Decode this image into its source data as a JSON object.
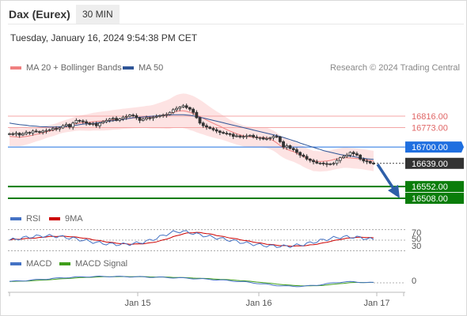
{
  "header": {
    "instrument": "Dax (Eurex)",
    "timeframe": "30 MIN",
    "datetime": "Tuesday, January 16, 2024 9:54:38 PM CET",
    "credit": "Research © 2024 Trading Central"
  },
  "legends": {
    "price": [
      {
        "label": "MA 20 + Bollinger Bands",
        "color": "#f08080"
      },
      {
        "label": "MA 50",
        "color": "#2f5597"
      }
    ],
    "rsi": [
      {
        "label": "RSI",
        "color": "#4472c4"
      },
      {
        "label": "9MA",
        "color": "#cc0000"
      }
    ],
    "macd": [
      {
        "label": "MACD",
        "color": "#4472c4"
      },
      {
        "label": "MACD Signal",
        "color": "#3f9e1a"
      }
    ]
  },
  "chart_data": {
    "type": "candlestick",
    "x_ticks": [
      "Jan 15",
      "Jan 16",
      "Jan 17"
    ],
    "ylim": [
      16480,
      16890
    ],
    "levels": [
      {
        "value": 16816.0,
        "label": "16816.00",
        "kind": "resistance",
        "color": "#e06666"
      },
      {
        "value": 16773.0,
        "label": "16773.00",
        "kind": "resistance",
        "color": "#e06666"
      },
      {
        "value": 16700.0,
        "label": "16700.00",
        "kind": "pivot",
        "color": "#1f6fe0"
      },
      {
        "value": 16639.0,
        "label": "16639.00",
        "kind": "last",
        "color": "#333333"
      },
      {
        "value": 16552.0,
        "label": "16552.00",
        "kind": "support",
        "color": "#0a7d0a"
      },
      {
        "value": 16508.0,
        "label": "16508.00",
        "kind": "support",
        "color": "#0a7d0a"
      }
    ],
    "close": [
      16750,
      16748,
      16752,
      16745,
      16750,
      16755,
      16753,
      16760,
      16758,
      16755,
      16760,
      16762,
      16765,
      16770,
      16768,
      16772,
      16780,
      16785,
      16775,
      16790,
      16800,
      16798,
      16795,
      16790,
      16785,
      16788,
      16780,
      16790,
      16795,
      16800,
      16805,
      16808,
      16800,
      16806,
      16812,
      16815,
      16820,
      16818,
      16810,
      16800,
      16805,
      16810,
      16808,
      16812,
      16815,
      16818,
      16820,
      16822,
      16830,
      16840,
      16845,
      16850,
      16855,
      16848,
      16842,
      16830,
      16810,
      16790,
      16780,
      16775,
      16770,
      16765,
      16760,
      16755,
      16752,
      16750,
      16748,
      16740,
      16742,
      16738,
      16740,
      16742,
      16744,
      16738,
      16735,
      16735,
      16730,
      16732,
      16735,
      16740,
      16738,
      16720,
      16700,
      16705,
      16695,
      16690,
      16680,
      16670,
      16665,
      16655,
      16650,
      16645,
      16640,
      16640,
      16638,
      16635,
      16637,
      16639,
      16650,
      16660,
      16665,
      16670,
      16680,
      16675,
      16670,
      16655,
      16648,
      16646,
      16640,
      16639
    ],
    "ma20": [
      16740,
      16739,
      16738,
      16737,
      16738,
      16740,
      16742,
      16745,
      16748,
      16750,
      16753,
      16757,
      16760,
      16763,
      16767,
      16772,
      16776,
      16779,
      16782,
      16785,
      16788,
      16790,
      16791,
      16792,
      16793,
      16795,
      16796,
      16797,
      16798,
      16799,
      16800,
      16802,
      16803,
      16804,
      16806,
      16807,
      16808,
      16809,
      16810,
      16811,
      16812,
      16813,
      16813,
      16814,
      16816,
      16818,
      16820,
      16822,
      16825,
      16830,
      16834,
      16836,
      16836,
      16834,
      16830,
      16826,
      16820,
      16814,
      16808,
      16801,
      16795,
      16789,
      16783,
      16778,
      16772,
      16766,
      16760,
      16755,
      16750,
      16746,
      16742,
      16740,
      16738,
      16737,
      16737,
      16737,
      16736,
      16734,
      16730,
      16724,
      16716,
      16706,
      16698,
      16692,
      16687,
      16683,
      16677,
      16671,
      16664,
      16658,
      16653,
      16648,
      16647,
      16646,
      16647,
      16648,
      16650,
      16653,
      16656,
      16658,
      16660,
      16660,
      16659,
      16658,
      16657,
      16656,
      16654,
      16652,
      16650,
      16648
    ],
    "ma50": [
      16790,
      16788,
      16786,
      16784,
      16783,
      16782,
      16780,
      16779,
      16778,
      16777,
      16776,
      16776,
      16775,
      16775,
      16775,
      16776,
      16777,
      16778,
      16779,
      16781,
      16782,
      16784,
      16786,
      16787,
      16788,
      16789,
      16790,
      16792,
      16794,
      16795,
      16797,
      16799,
      16800,
      16802,
      16804,
      16806,
      16808,
      16810,
      16811,
      16812,
      16813,
      16814,
      16815,
      16816,
      16817,
      16818,
      16819,
      16819,
      16820,
      16821,
      16821,
      16821,
      16821,
      16820,
      16819,
      16817,
      16815,
      16812,
      16809,
      16806,
      16803,
      16800,
      16797,
      16794,
      16791,
      16788,
      16785,
      16782,
      16779,
      16776,
      16773,
      16770,
      16767,
      16764,
      16761,
      16758,
      16755,
      16752,
      16749,
      16746,
      16743,
      16740,
      16736,
      16732,
      16728,
      16724,
      16720,
      16715,
      16711,
      16707,
      16703,
      16699,
      16695,
      16691,
      16687,
      16684,
      16681,
      16678,
      16675,
      16672,
      16670,
      16668,
      16666,
      16664,
      16662,
      16660,
      16658,
      16656,
      16655,
      16654
    ]
  }
}
